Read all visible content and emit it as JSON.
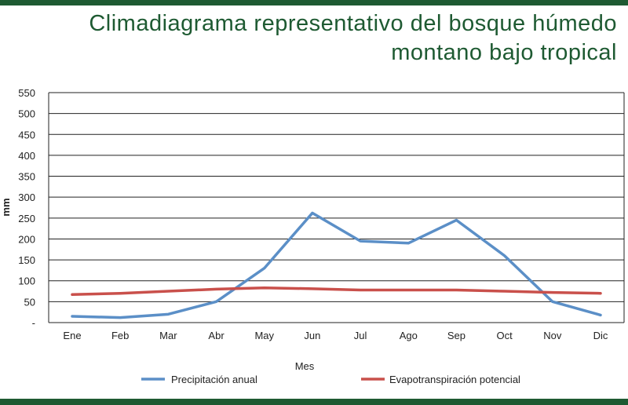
{
  "theme": {
    "band_color": "#1e5a32",
    "title_color": "#1e5a32",
    "grid_color": "#222222"
  },
  "chart_data": {
    "type": "line",
    "title_lines": [
      "Climadiagrama representativo del bosque húmedo",
      "montano bajo tropical"
    ],
    "xlabel": "Mes",
    "ylabel": "mm",
    "categories": [
      "Ene",
      "Feb",
      "Mar",
      "Abr",
      "May",
      "Jun",
      "Jul",
      "Ago",
      "Sep",
      "Oct",
      "Nov",
      "Dic"
    ],
    "ylim": [
      0,
      550
    ],
    "yticks": [
      0,
      50,
      100,
      150,
      200,
      250,
      300,
      350,
      400,
      450,
      500,
      550
    ],
    "ytick_labels": [
      "-",
      "50",
      "100",
      "150",
      "200",
      "250",
      "300",
      "350",
      "400",
      "450",
      "500",
      "550"
    ],
    "grid": true,
    "legend_position": "bottom",
    "series": [
      {
        "name": "Precipitación anual",
        "color": "#5b8fc7",
        "values": [
          15,
          12,
          20,
          50,
          130,
          262,
          195,
          190,
          245,
          160,
          50,
          18
        ]
      },
      {
        "name": "Evapotranspiración potencial",
        "color": "#c9504b",
        "values": [
          67,
          70,
          75,
          80,
          83,
          81,
          78,
          78,
          78,
          75,
          72,
          70
        ]
      }
    ]
  }
}
